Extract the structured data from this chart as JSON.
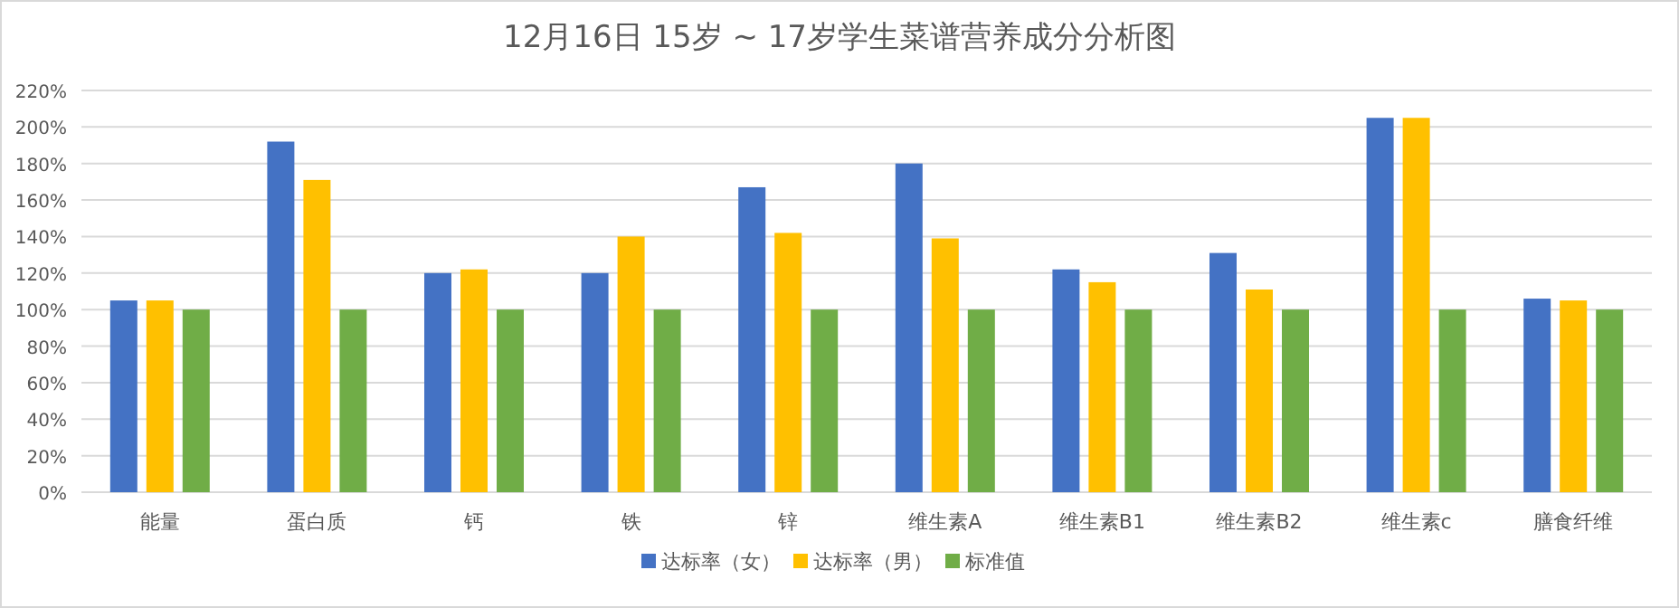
{
  "chart_data": {
    "type": "bar",
    "title": "12月16日 15岁 ~ 17岁学生菜谱营养成分分析图",
    "categories": [
      "能量",
      "蛋白质",
      "钙",
      "铁",
      "锌",
      "维生素A",
      "维生素B1",
      "维生素B2",
      "维生素c",
      "膳食纤维"
    ],
    "series": [
      {
        "name": "达标率（女）",
        "color": "#4472c4",
        "values": [
          105,
          192,
          120,
          120,
          167,
          180,
          122,
          131,
          205,
          106
        ]
      },
      {
        "name": "达标率（男）",
        "color": "#ffc000",
        "values": [
          105,
          171,
          122,
          140,
          142,
          139,
          115,
          111,
          205,
          105
        ]
      },
      {
        "name": "标准值",
        "color": "#70ad47",
        "values": [
          100,
          100,
          100,
          100,
          100,
          100,
          100,
          100,
          100,
          100
        ]
      }
    ],
    "ylim": [
      0,
      220
    ],
    "yticks": [
      {
        "value": 0,
        "label": "0%"
      },
      {
        "value": 20,
        "label": "20%"
      },
      {
        "value": 40,
        "label": "40%"
      },
      {
        "value": 60,
        "label": "60%"
      },
      {
        "value": 80,
        "label": "80%"
      },
      {
        "value": 100,
        "label": "100%"
      },
      {
        "value": 120,
        "label": "120%"
      },
      {
        "value": 140,
        "label": "140%"
      },
      {
        "value": 160,
        "label": "160%"
      },
      {
        "value": 180,
        "label": "180%"
      },
      {
        "value": 200,
        "label": "200%"
      },
      {
        "value": 220,
        "label": "220%"
      }
    ],
    "grid": "y",
    "legend": "bottom"
  }
}
